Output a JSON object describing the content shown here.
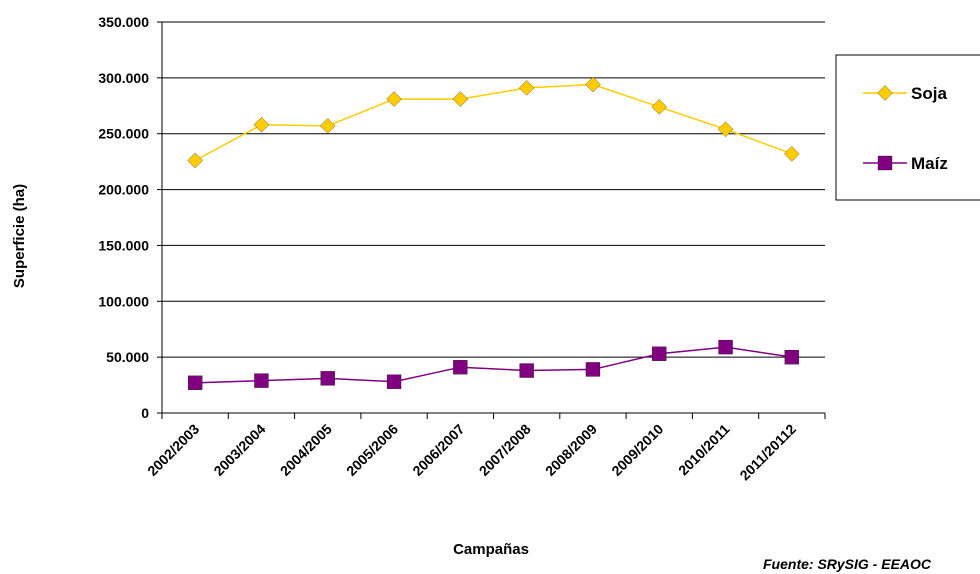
{
  "chart_data": {
    "type": "line",
    "categories": [
      "2002/2003",
      "2003/2004",
      "2004/2005",
      "2005/2006",
      "2006/2007",
      "2007/2008",
      "2008/2009",
      "2009/2010",
      "2010/2011",
      "2011/20112"
    ],
    "series": [
      {
        "name": "Soja",
        "values": [
          226000,
          258000,
          257000,
          281000,
          281000,
          291000,
          294000,
          274000,
          254000,
          232000
        ],
        "color": "#FFCC00",
        "marker": "diamond"
      },
      {
        "name": "Maíz",
        "values": [
          27000,
          29000,
          31000,
          28000,
          41000,
          38000,
          39000,
          53000,
          59000,
          50000
        ],
        "color": "#800080",
        "marker": "square"
      }
    ],
    "xlabel": "Campañas",
    "ylabel": "Superficie (ha)",
    "ylim": [
      0,
      350000
    ],
    "yticks": [
      0,
      50000,
      100000,
      150000,
      200000,
      250000,
      300000,
      350000
    ],
    "ytick_labels": [
      "0",
      "50.000",
      "100.000",
      "150.000",
      "200.000",
      "250.000",
      "300.000",
      "350.000"
    ],
    "grid": "horizontal",
    "legend_position": "right",
    "source_note": "Fuente: SRySIG - EEAOC"
  }
}
